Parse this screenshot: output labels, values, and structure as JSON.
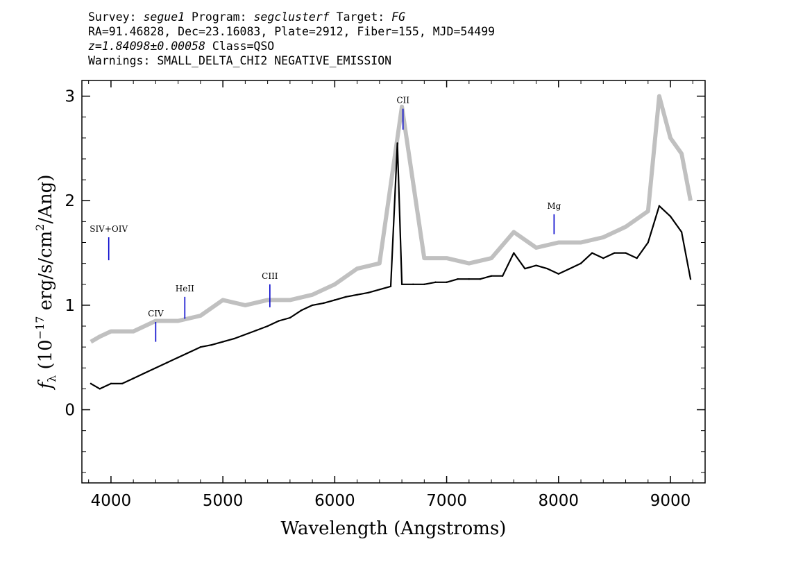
{
  "header": {
    "line1": {
      "survey_label": "Survey:",
      "survey": "segue1",
      "program_label": "Program:",
      "program": "segclusterf",
      "target_label": "Target:",
      "target": "FG"
    },
    "line2": "RA=91.46828, Dec=23.16083, Plate=2912, Fiber=155, MJD=54499",
    "line3": {
      "z": "z=1.84098±0.00058",
      "class": "Class=QSO"
    },
    "line4": "Warnings: SMALL_DELTA_CHI2 NEGATIVE_EMISSION"
  },
  "chart_data": {
    "type": "line",
    "title": "",
    "xlabel": "Wavelength (Angstroms)",
    "ylabel": "f_λ (10^-17 erg/s/cm^2/Ang)",
    "xlim": [
      3740,
      9310
    ],
    "ylim": [
      -0.7,
      3.15
    ],
    "xticks": [
      4000,
      5000,
      6000,
      7000,
      8000,
      9000
    ],
    "yticks": [
      0,
      1,
      2,
      3
    ],
    "series": [
      {
        "color": "#c0c0c0",
        "style": "noise envelope",
        "x": [
          3820,
          3900,
          4000,
          4200,
          4400,
          4600,
          4800,
          5000,
          5200,
          5400,
          5600,
          5800,
          6000,
          6200,
          6400,
          6600,
          6800,
          7000,
          7200,
          7400,
          7600,
          7800,
          8000,
          8200,
          8400,
          8600,
          8800,
          8900,
          9000,
          9100,
          9180
        ],
        "values": [
          0.65,
          0.7,
          0.75,
          0.75,
          0.85,
          0.85,
          0.9,
          1.05,
          1.0,
          1.05,
          1.05,
          1.1,
          1.2,
          1.35,
          1.4,
          2.9,
          1.45,
          1.45,
          1.4,
          1.45,
          1.7,
          1.55,
          1.6,
          1.6,
          1.65,
          1.75,
          1.9,
          3.0,
          2.6,
          2.45,
          2.0
        ]
      },
      {
        "color": "#000000",
        "style": "flux",
        "x": [
          3820,
          3900,
          4000,
          4100,
          4200,
          4300,
          4400,
          4500,
          4600,
          4700,
          4800,
          4900,
          5000,
          5100,
          5200,
          5300,
          5400,
          5500,
          5600,
          5700,
          5800,
          5900,
          6000,
          6100,
          6200,
          6300,
          6400,
          6500,
          6560,
          6600,
          6700,
          6800,
          6900,
          7000,
          7100,
          7200,
          7300,
          7400,
          7500,
          7600,
          7700,
          7800,
          7900,
          8000,
          8100,
          8200,
          8300,
          8400,
          8500,
          8600,
          8700,
          8800,
          8900,
          9000,
          9100,
          9180
        ],
        "values": [
          0.25,
          0.2,
          0.25,
          0.25,
          0.3,
          0.35,
          0.4,
          0.45,
          0.5,
          0.55,
          0.6,
          0.62,
          0.65,
          0.68,
          0.72,
          0.76,
          0.8,
          0.85,
          0.88,
          0.95,
          1.0,
          1.02,
          1.05,
          1.08,
          1.1,
          1.12,
          1.15,
          1.18,
          2.55,
          1.2,
          1.2,
          1.2,
          1.22,
          1.22,
          1.25,
          1.25,
          1.25,
          1.28,
          1.28,
          1.5,
          1.35,
          1.38,
          1.35,
          1.3,
          1.35,
          1.4,
          1.5,
          1.45,
          1.5,
          1.5,
          1.45,
          1.6,
          1.95,
          1.85,
          1.7,
          1.25
        ]
      }
    ],
    "emission_lines": [
      {
        "label": "SIV+OIV",
        "x": 3980,
        "marker_top": 1.65,
        "marker_bottom": 1.43
      },
      {
        "label": "CIV",
        "x": 4400,
        "marker_top": 0.84,
        "marker_bottom": 0.65
      },
      {
        "label": "HeII",
        "x": 4660,
        "marker_top": 1.08,
        "marker_bottom": 0.87
      },
      {
        "label": "CIII",
        "x": 5420,
        "marker_top": 1.2,
        "marker_bottom": 0.98
      },
      {
        "label": "CII",
        "x": 6610,
        "marker_top": 2.88,
        "marker_bottom": 2.68
      },
      {
        "label": "Mg",
        "x": 7960,
        "marker_top": 1.87,
        "marker_bottom": 1.68
      }
    ],
    "line_marker_color": "#0000cc"
  }
}
